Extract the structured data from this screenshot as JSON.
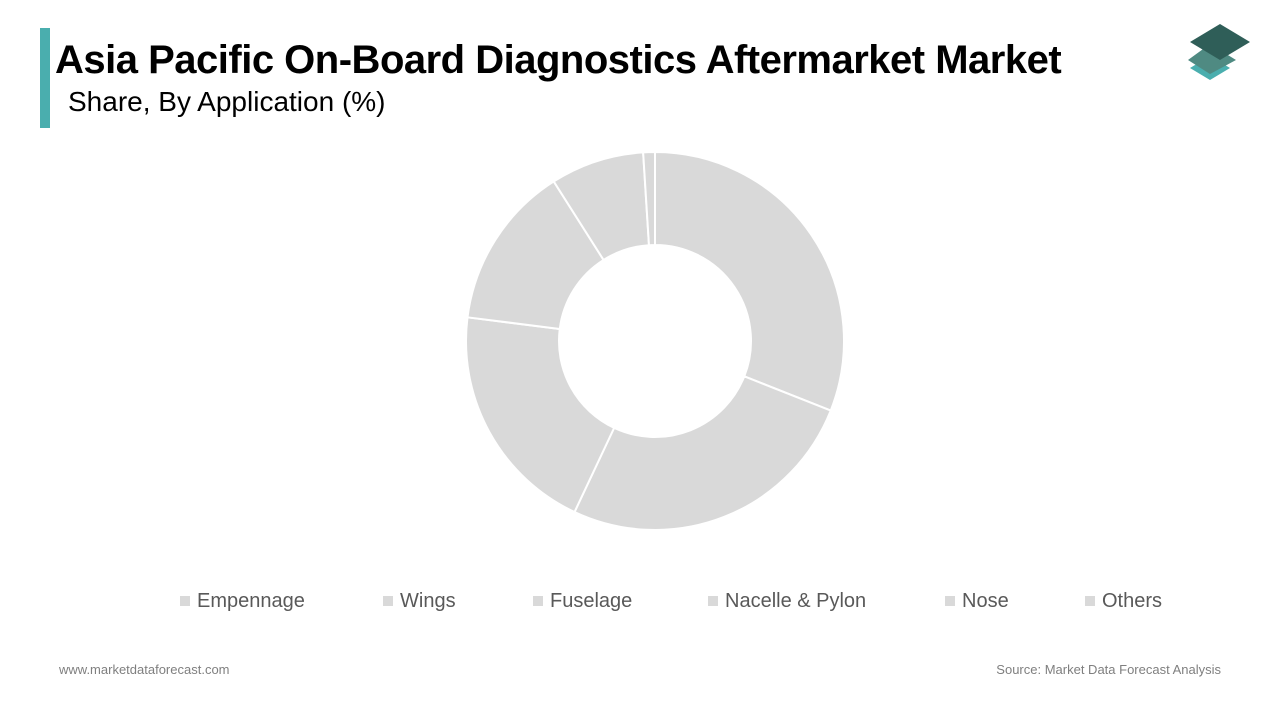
{
  "header": {
    "title": "Asia Pacific On-Board Diagnostics Aftermarket Market",
    "subtitle": "Share, By Application (%)"
  },
  "colors": {
    "accent": "#4aaeae",
    "slice_fill": "#d9d9d9",
    "slice_stroke": "#ffffff",
    "legend_swatch": "#d9d9d9",
    "logo_top": "#2f5e58",
    "logo_middle": "#4f8a82",
    "logo_bottom": "#4aaeae"
  },
  "logo": {
    "icon": "stacked-layers-icon"
  },
  "chart_data": {
    "type": "pie",
    "variant": "donut",
    "categories": [
      "Empennage",
      "Wings",
      "Fuselage",
      "Nacelle & Pylon",
      "Nose",
      "Others"
    ],
    "values": [
      31,
      26,
      20,
      14,
      8,
      1
    ],
    "title": "Asia Pacific On-Board Diagnostics Aftermarket Market",
    "subtitle": "Share, By Application (%)",
    "legend_position": "bottom",
    "start_angle_deg": 0,
    "direction": "clockwise"
  },
  "footer": {
    "website": "www.marketdataforecast.com",
    "source": "Source: Market Data Forecast Analysis"
  }
}
